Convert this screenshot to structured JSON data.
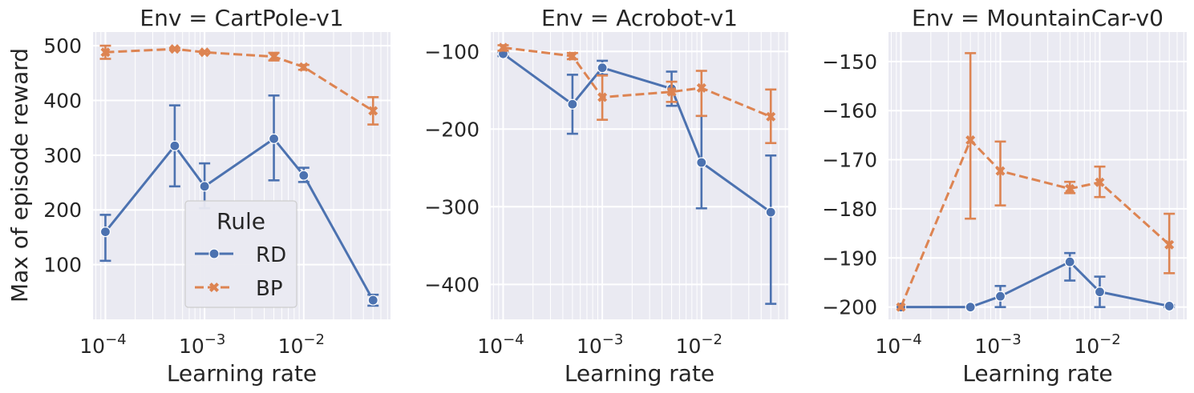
{
  "figure": {
    "ylabel": "Max of episode reward",
    "xlabel": "Learning rate",
    "legend": {
      "title": "Rule",
      "placement": "lower-center (first panel)",
      "entries": [
        "RD",
        "BP"
      ]
    }
  },
  "colors": {
    "RD": "#4c72b0",
    "BP": "#dd8452",
    "panel_bg": "#eaeaf2",
    "grid": "#ffffff"
  },
  "chart_data": [
    {
      "type": "line",
      "title": "Env = CartPole-v1",
      "xlabel": "Learning rate",
      "ylabel": "Max of episode reward",
      "xscale": "log",
      "xlim": [
        7.5e-05,
        0.075
      ],
      "ylim": [
        0,
        525
      ],
      "xticks": [
        0.0001,
        0.001,
        0.01
      ],
      "xtick_labels": [
        [
          "10",
          "−4"
        ],
        [
          "10",
          "−3"
        ],
        [
          "10",
          "−2"
        ]
      ],
      "yticks": [
        100,
        200,
        300,
        400,
        500
      ],
      "ytick_labels": [
        "100",
        "200",
        "300",
        "400",
        "500"
      ],
      "grid": true,
      "legend": true,
      "x": [
        0.0001,
        0.0005,
        0.001,
        0.005,
        0.01,
        0.05
      ],
      "series": [
        {
          "name": "RD",
          "color": "#4c72b0",
          "marker": "o",
          "dash": false,
          "values": [
            160,
            317,
            243,
            330,
            263,
            35
          ],
          "err_low": [
            107,
            243,
            203,
            254,
            251,
            25
          ],
          "err_high": [
            191,
            391,
            285,
            409,
            277,
            45
          ]
        },
        {
          "name": "BP",
          "color": "#dd8452",
          "marker": "x",
          "dash": true,
          "values": [
            488,
            494,
            488,
            480,
            461,
            381
          ],
          "err_low": [
            476,
            492,
            486,
            473,
            456,
            356
          ],
          "err_high": [
            500,
            496,
            490,
            487,
            465,
            406
          ]
        }
      ]
    },
    {
      "type": "line",
      "title": "Env = Acrobot-v1",
      "xlabel": "Learning rate",
      "xscale": "log",
      "xlim": [
        7.5e-05,
        0.075
      ],
      "ylim": [
        -445,
        -75
      ],
      "xticks": [
        0.0001,
        0.001,
        0.01
      ],
      "xtick_labels": [
        [
          "10",
          "−4"
        ],
        [
          "10",
          "−3"
        ],
        [
          "10",
          "−2"
        ]
      ],
      "yticks": [
        -400,
        -300,
        -200,
        -100
      ],
      "ytick_labels": [
        "−400",
        "−300",
        "−200",
        "−100"
      ],
      "grid": true,
      "legend": false,
      "x": [
        0.0001,
        0.0005,
        0.001,
        0.005,
        0.01,
        0.05
      ],
      "series": [
        {
          "name": "RD",
          "color": "#4c72b0",
          "marker": "o",
          "dash": false,
          "values": [
            -103,
            -168,
            -121,
            -148,
            -243,
            -307
          ],
          "err_low": [
            -106,
            -206,
            -130,
            -170,
            -302,
            -425
          ],
          "err_high": [
            -101,
            -130,
            -112,
            -126,
            -183,
            -234
          ]
        },
        {
          "name": "BP",
          "color": "#dd8452",
          "marker": "x",
          "dash": true,
          "values": [
            -95,
            -106,
            -159,
            -152,
            -147,
            -184
          ],
          "err_low": [
            -99,
            -110,
            -188,
            -165,
            -183,
            -218
          ],
          "err_high": [
            -92,
            -102,
            -131,
            -139,
            -125,
            -149
          ]
        }
      ]
    },
    {
      "type": "line",
      "title": "Env = MountainCar-v0",
      "xlabel": "Learning rate",
      "xscale": "log",
      "xlim": [
        7.5e-05,
        0.075
      ],
      "ylim": [
        -202.5,
        -144
      ],
      "xticks": [
        0.0001,
        0.001,
        0.01
      ],
      "xtick_labels": [
        [
          "10",
          "−4"
        ],
        [
          "10",
          "−3"
        ],
        [
          "10",
          "−2"
        ]
      ],
      "yticks": [
        -200,
        -190,
        -180,
        -170,
        -160,
        -150
      ],
      "ytick_labels": [
        "−200",
        "−190",
        "−180",
        "−170",
        "−160",
        "−150"
      ],
      "grid": true,
      "legend": false,
      "x": [
        0.0001,
        0.0005,
        0.001,
        0.005,
        0.01,
        0.05
      ],
      "series": [
        {
          "name": "RD",
          "color": "#4c72b0",
          "marker": "o",
          "dash": false,
          "values": [
            -200,
            -200,
            -197.8,
            -190.8,
            -196.9,
            -199.8
          ],
          "err_low": [
            -200,
            -200,
            -200,
            -194.6,
            -200,
            -200
          ],
          "err_high": [
            -200,
            -200,
            -195.7,
            -189,
            -193.8,
            -199.6
          ]
        },
        {
          "name": "BP",
          "color": "#dd8452",
          "marker": "x",
          "dash": true,
          "values": [
            -200,
            -166,
            -172.3,
            -175.9,
            -174.6,
            -187.3
          ],
          "err_low": [
            -200,
            -182,
            -179.3,
            -176.8,
            -177.6,
            -193.1
          ],
          "err_high": [
            -200,
            -148.3,
            -166.3,
            -174.5,
            -171.4,
            -181
          ]
        }
      ]
    }
  ]
}
